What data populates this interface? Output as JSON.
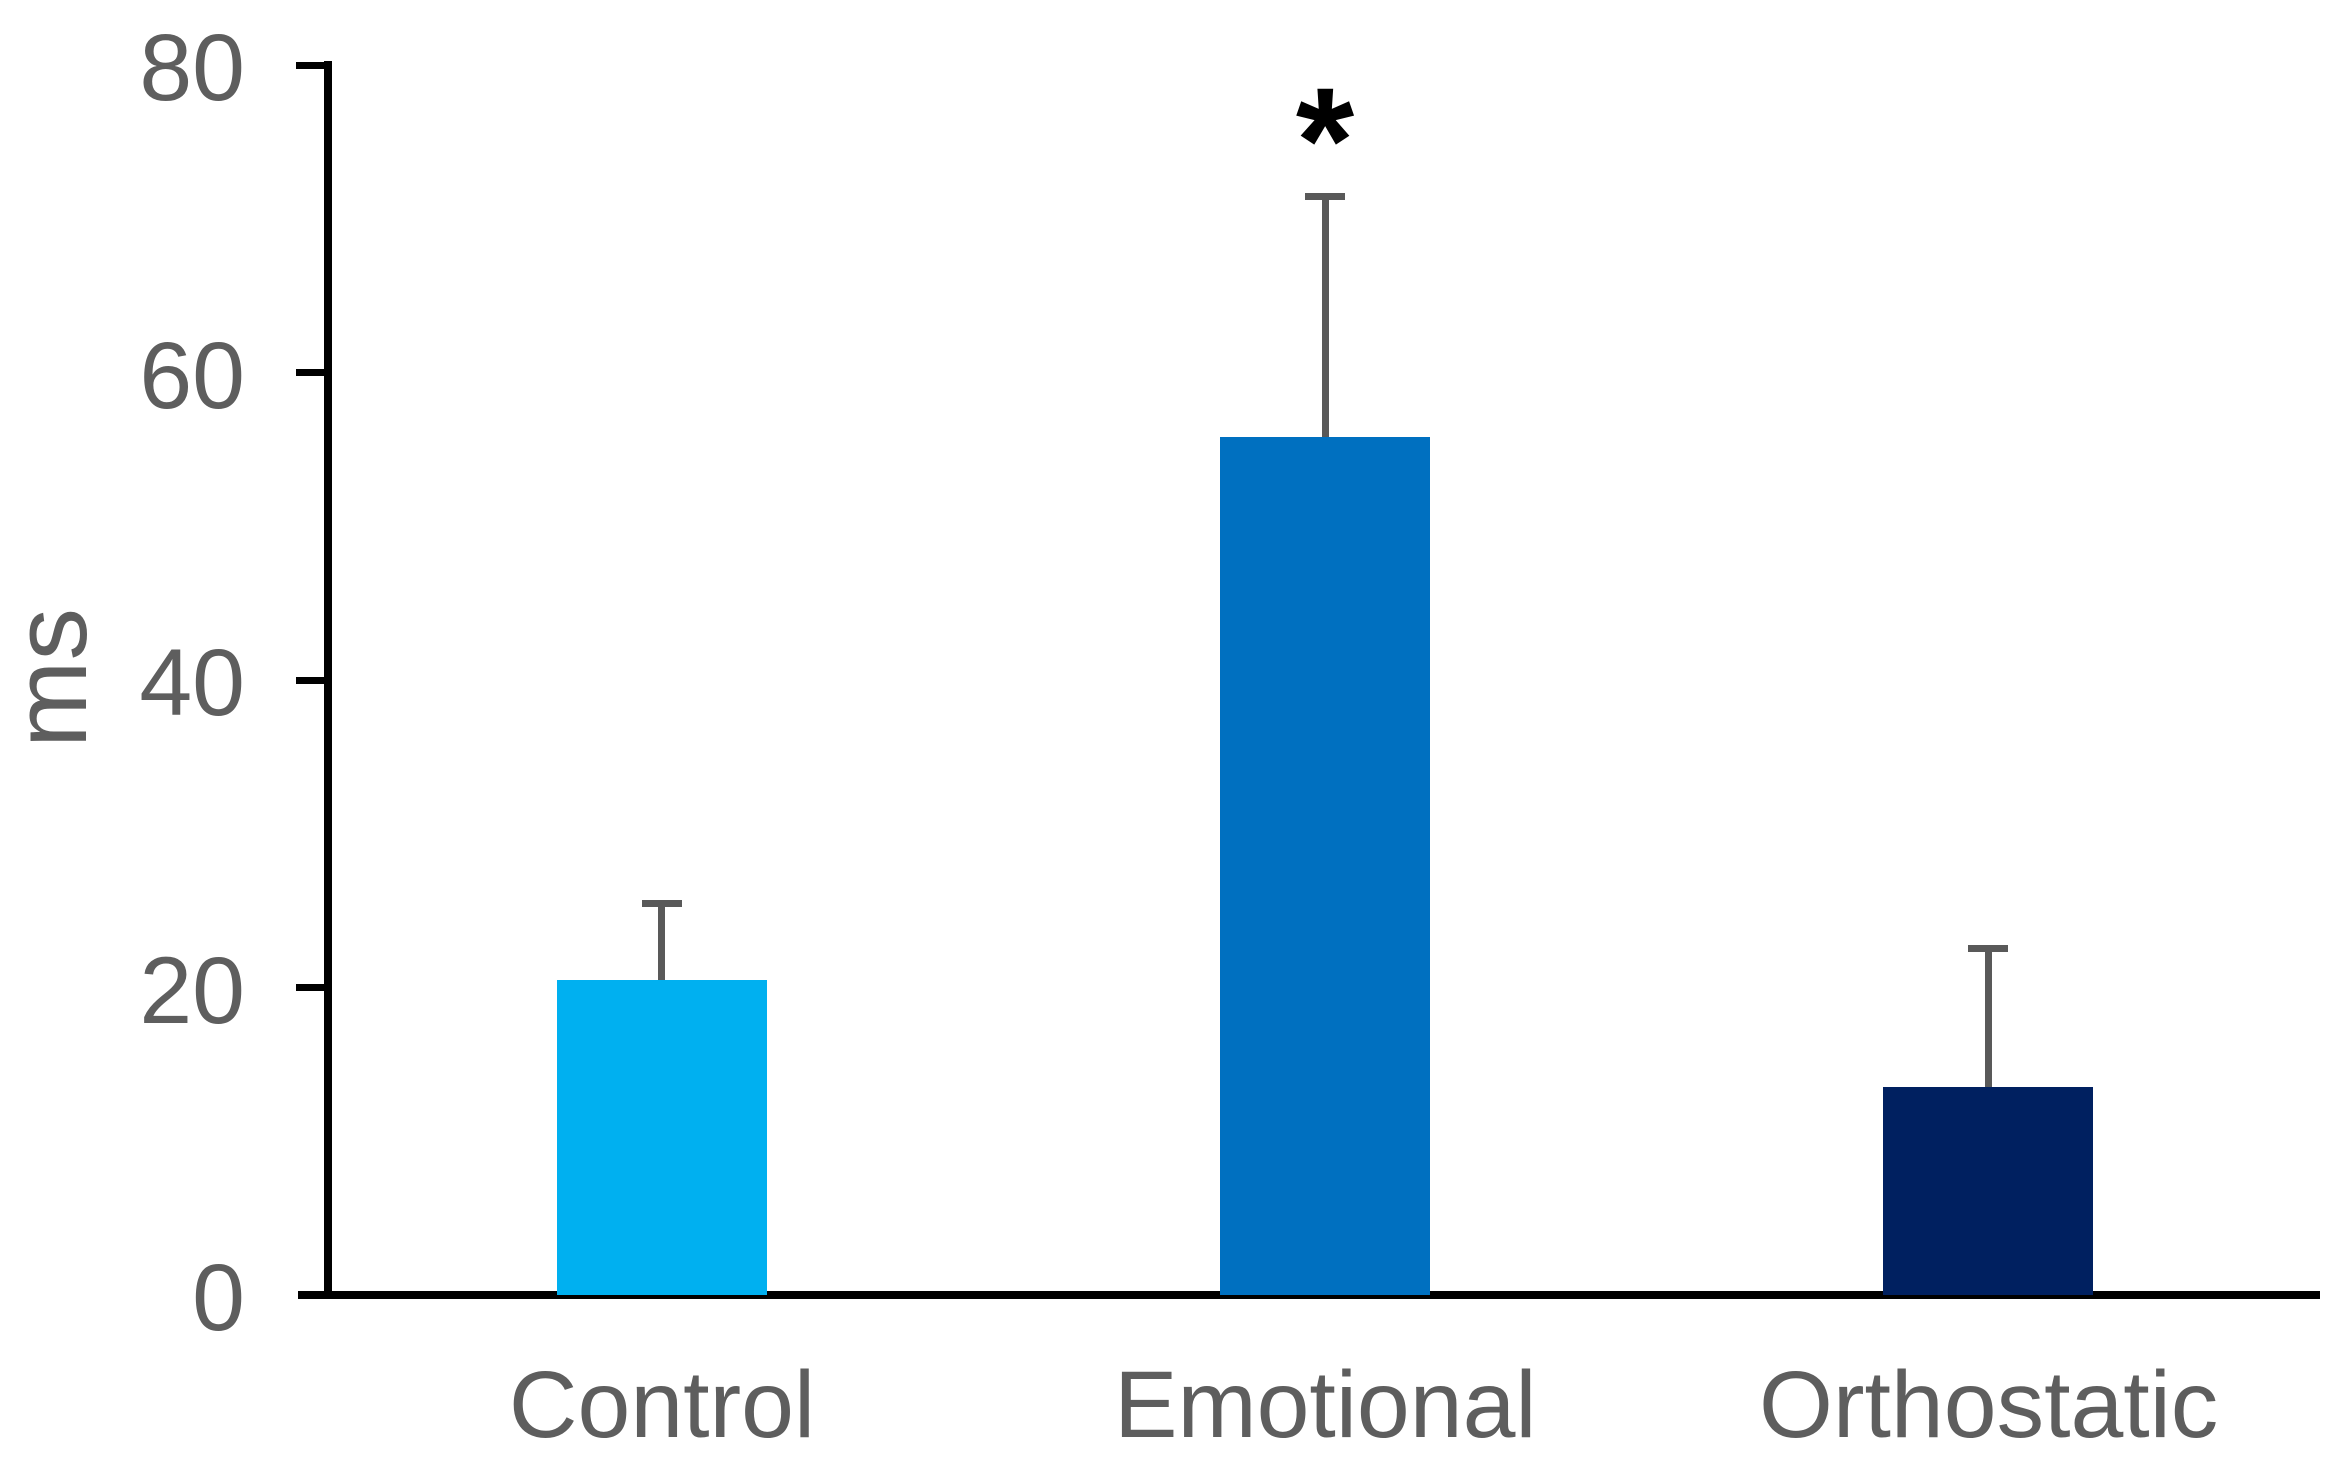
{
  "chart_data": {
    "type": "bar",
    "title": "",
    "xlabel": "",
    "ylabel": "ms",
    "ylim": [
      0,
      80
    ],
    "yticks": [
      0,
      20,
      40,
      60,
      80
    ],
    "grid": false,
    "legend": null,
    "categories": [
      "Control",
      "Emotional",
      "Orthostatic"
    ],
    "series": [
      {
        "name": "ms",
        "values": [
          20.5,
          55.8,
          13.5
        ],
        "errors_plus": [
          5.0,
          15.7,
          9.1
        ],
        "bar_colors": [
          "#00B0F0",
          "#0070C0",
          "#002060"
        ]
      }
    ],
    "annotations": [
      {
        "text": "*",
        "category": "Emotional"
      }
    ]
  },
  "style": {
    "background": "#FFFFFF",
    "axis_color": "#000000",
    "tick_label_color": "#5E5E5E",
    "error_bar_color": "#595959",
    "annotation_color": "#000000"
  }
}
